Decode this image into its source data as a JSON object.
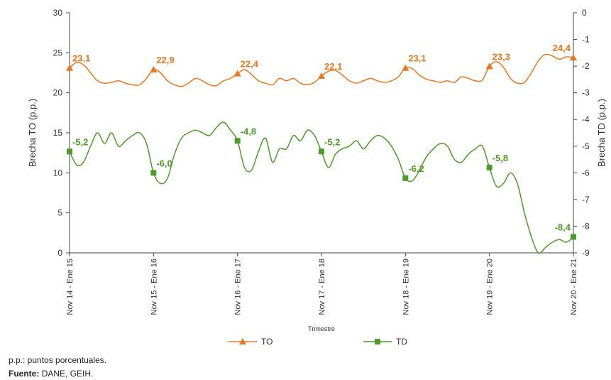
{
  "chart_data": {
    "type": "line",
    "x_label": "Trimestre",
    "y_label": "Brecha TO (p.p.)",
    "y2_label": "Brecha TD (p.p.)",
    "categories": [
      "Nov 14 - Ene 15",
      null,
      null,
      null,
      null,
      null,
      null,
      null,
      null,
      null,
      null,
      null,
      "Nov 15 - Ene 16",
      null,
      null,
      null,
      null,
      null,
      null,
      null,
      null,
      null,
      null,
      null,
      "Nov 16 - Ene 17",
      null,
      null,
      null,
      null,
      null,
      null,
      null,
      null,
      null,
      null,
      null,
      "Nov 17 - Ene 18",
      null,
      null,
      null,
      null,
      null,
      null,
      null,
      null,
      null,
      null,
      null,
      "Nov 18 - Ene 19",
      null,
      null,
      null,
      null,
      null,
      null,
      null,
      null,
      null,
      null,
      null,
      "Nov 19 - Ene 20",
      null,
      null,
      null,
      null,
      null,
      null,
      null,
      null,
      null,
      null,
      null,
      "Nov 20 - Ene 21"
    ],
    "ylim": [
      0,
      30
    ],
    "yticks": [
      0,
      5,
      10,
      15,
      20,
      25,
      30
    ],
    "y2lim": [
      -9,
      0
    ],
    "y2ticks": [
      0,
      -1,
      -2,
      -3,
      -4,
      -5,
      -6,
      -7,
      -8,
      -9
    ],
    "legend": "bottom",
    "series": [
      {
        "name": "TO",
        "color": "#e87722",
        "marker": "triangle",
        "values": [
          23.1,
          23.8,
          23.5,
          22.5,
          21.5,
          21.2,
          21.3,
          21.5,
          21.2,
          21.0,
          21.0,
          21.8,
          22.9,
          22.5,
          21.5,
          21.0,
          20.8,
          21.2,
          21.8,
          21.5,
          21.0,
          20.9,
          21.5,
          21.8,
          22.4,
          22.9,
          22.3,
          21.5,
          21.2,
          21.0,
          21.8,
          21.5,
          21.8,
          21.2,
          21.0,
          21.3,
          22.1,
          22.7,
          22.8,
          22.2,
          21.5,
          21.2,
          21.5,
          21.8,
          21.5,
          21.3,
          21.5,
          22.0,
          23.1,
          23.0,
          22.2,
          21.7,
          21.5,
          21.3,
          21.5,
          21.3,
          22.0,
          21.8,
          21.5,
          21.6,
          23.3,
          23.9,
          23.2,
          21.8,
          21.2,
          21.3,
          22.5,
          24.0,
          24.8,
          24.6,
          24.2,
          24.5,
          24.4
        ],
        "value_labels": [
          "23,1",
          null,
          null,
          null,
          null,
          null,
          null,
          null,
          null,
          null,
          null,
          null,
          "22,9",
          null,
          null,
          null,
          null,
          null,
          null,
          null,
          null,
          null,
          null,
          null,
          "22,4",
          null,
          null,
          null,
          null,
          null,
          null,
          null,
          null,
          null,
          null,
          null,
          "22,1",
          null,
          null,
          null,
          null,
          null,
          null,
          null,
          null,
          null,
          null,
          null,
          "23,1",
          null,
          null,
          null,
          null,
          null,
          null,
          null,
          null,
          null,
          null,
          null,
          "23,3",
          null,
          null,
          null,
          null,
          null,
          null,
          null,
          null,
          null,
          null,
          null,
          "24,4"
        ]
      },
      {
        "name": "TD",
        "color": "#4e9a2a",
        "marker": "square",
        "axis": "y2",
        "values": [
          -5.2,
          -5.7,
          -5.6,
          -5.0,
          -4.5,
          -4.9,
          -4.5,
          -5.0,
          -4.8,
          -4.6,
          -4.5,
          -4.9,
          -6.0,
          -6.4,
          -6.2,
          -5.3,
          -4.7,
          -4.5,
          -4.4,
          -4.5,
          -4.6,
          -4.3,
          -4.1,
          -4.4,
          -4.8,
          -5.8,
          -5.9,
          -5.2,
          -4.7,
          -5.6,
          -5.1,
          -5.1,
          -4.6,
          -4.8,
          -4.4,
          -4.6,
          -5.2,
          -5.8,
          -5.3,
          -5.1,
          -5.0,
          -4.8,
          -5.1,
          -4.8,
          -4.6,
          -4.7,
          -5.0,
          -5.5,
          -6.2,
          -6.3,
          -5.9,
          -5.4,
          -5.1,
          -4.9,
          -5.0,
          -5.5,
          -5.6,
          -5.3,
          -5.1,
          -5.0,
          -5.8,
          -6.5,
          -6.4,
          -6.0,
          -6.4,
          -7.5,
          -8.4,
          -9.0,
          -8.8,
          -8.6,
          -8.5,
          -8.6,
          -8.4
        ],
        "value_labels": [
          "-5,2",
          null,
          null,
          null,
          null,
          null,
          null,
          null,
          null,
          null,
          null,
          null,
          "-6,0",
          null,
          null,
          null,
          null,
          null,
          null,
          null,
          null,
          null,
          null,
          null,
          "-4,8",
          null,
          null,
          null,
          null,
          null,
          null,
          null,
          null,
          null,
          null,
          null,
          "-5,2",
          null,
          null,
          null,
          null,
          null,
          null,
          null,
          null,
          null,
          null,
          null,
          "-6,2",
          null,
          null,
          null,
          null,
          null,
          null,
          null,
          null,
          null,
          null,
          null,
          "-5,8",
          null,
          null,
          null,
          null,
          null,
          null,
          null,
          null,
          null,
          null,
          null,
          "-8,4"
        ]
      }
    ]
  },
  "notes": {
    "note": "p.p.: puntos porcentuales.",
    "source_label": "Fuente:",
    "source": "DANE, GEIH."
  }
}
